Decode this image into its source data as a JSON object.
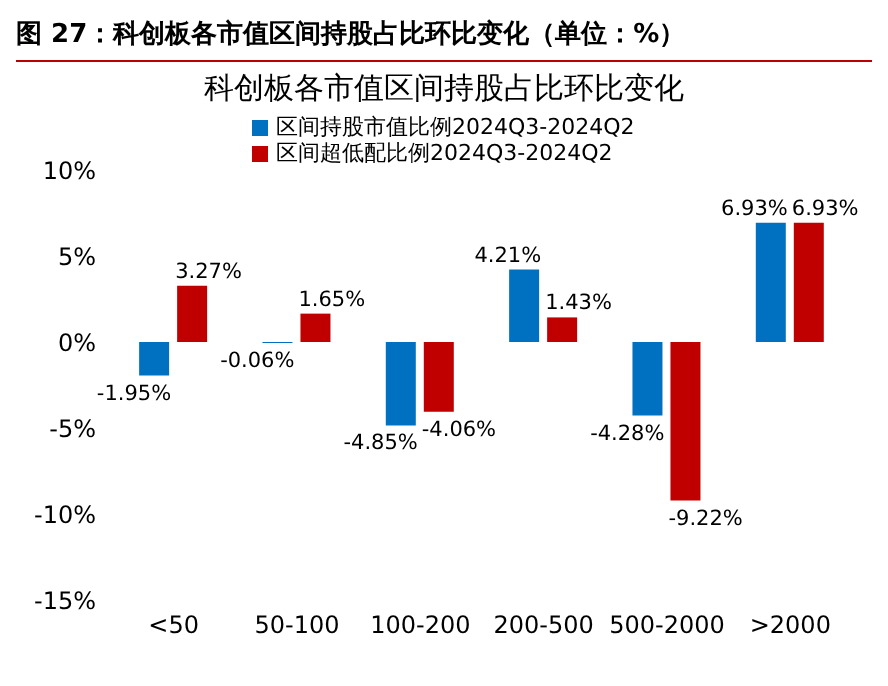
{
  "chart_data": {
    "type": "bar",
    "title": "图 27：科创板各市值区间持股占比环比变化（单位：%）",
    "subtitle": "科创板各市值区间持股占比环比变化",
    "categories": [
      "<50",
      "50-100",
      "100-200",
      "200-500",
      "500-2000",
      ">2000"
    ],
    "series": [
      {
        "name": "区间持股市值比例2024Q3-2024Q2",
        "color": "#0070c0",
        "values": [
          -1.95,
          -0.06,
          -4.85,
          4.21,
          -4.28,
          6.93
        ],
        "value_labels": [
          "-1.95%",
          "-0.06%",
          "-4.85%",
          "4.21%",
          "-4.28%",
          "6.93%"
        ]
      },
      {
        "name": "区间超低配比例2024Q3-2024Q2",
        "color": "#c00000",
        "values": [
          3.27,
          1.65,
          -4.06,
          1.43,
          -9.22,
          6.93
        ],
        "value_labels": [
          "3.27%",
          "1.65%",
          "-4.06%",
          "1.43%",
          "-9.22%",
          "6.93%"
        ]
      }
    ],
    "ylim": [
      -15,
      10
    ],
    "yticks": [
      {
        "value": -15,
        "label": "-15%"
      },
      {
        "value": -10,
        "label": "-10%"
      },
      {
        "value": -5,
        "label": "-5%"
      },
      {
        "value": 0,
        "label": "0%"
      },
      {
        "value": 5,
        "label": "5%"
      },
      {
        "value": 10,
        "label": "10%"
      }
    ],
    "grid": false,
    "legend": "top left"
  }
}
